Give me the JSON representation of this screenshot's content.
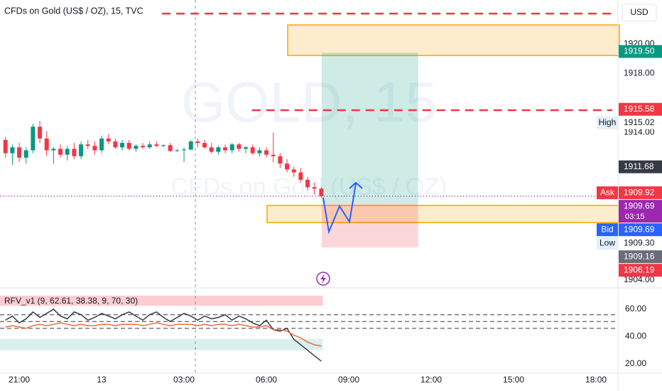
{
  "header": {
    "title": "CFDs on Gold (US$ / OZ), 15, TVC",
    "currency": "USD"
  },
  "chart_data": [
    {
      "type": "candlestick",
      "watermark": [
        "GOLD, 15",
        "CFDs on Gold (US$ / OZ)"
      ],
      "xlim": [
        -2.8,
        87.2
      ],
      "xticks": [
        {
          "value": 0,
          "label": "21:00"
        },
        {
          "value": 12,
          "label": "13"
        },
        {
          "value": 24,
          "label": "03:00"
        },
        {
          "value": 36,
          "label": "06:00"
        },
        {
          "value": 48,
          "label": "09:00"
        },
        {
          "value": 60,
          "label": "12:00"
        },
        {
          "value": 72,
          "label": "15:00"
        },
        {
          "value": 84,
          "label": "18:00"
        }
      ],
      "ylim": [
        1903.47,
        1922.99
      ],
      "yticks": [
        {
          "value": 1904,
          "label": "1904.00"
        },
        {
          "value": 1914,
          "label": "1914.00"
        },
        {
          "value": 1918,
          "label": "1918.00"
        },
        {
          "value": 1920,
          "label": "1920.00"
        }
      ],
      "up_color": "#089981",
      "down_color": "#f23645",
      "x": [
        -2,
        -1,
        0,
        1,
        2,
        3,
        4,
        5,
        6,
        7,
        8,
        9,
        10,
        11,
        12,
        13,
        14,
        15,
        16,
        17,
        18,
        19,
        20,
        21,
        22,
        23,
        24,
        25,
        26,
        27,
        28,
        29,
        30,
        31,
        32,
        33,
        34,
        35,
        36,
        37,
        38,
        39,
        40,
        41,
        42,
        43,
        44
      ],
      "open": [
        1913.5,
        1912.6,
        1913.0,
        1912.3,
        1912.8,
        1914.4,
        1913.6,
        1912.8,
        1912.9,
        1912.5,
        1912.9,
        1912.4,
        1913.2,
        1913.1,
        1912.8,
        1913.6,
        1913.4,
        1913.0,
        1913.3,
        1912.9,
        1913.1,
        1913.0,
        1913.2,
        1913.1,
        1913.15,
        1912.75,
        1912.8,
        1912.85,
        1913.4,
        1913.3,
        1913.0,
        1912.7,
        1913.0,
        1912.8,
        1913.2,
        1912.9,
        1913.0,
        1912.6,
        1912.8,
        1912.5,
        1912.4,
        1911.9,
        1911.5,
        1911.3,
        1910.8,
        1910.3,
        1910.2
      ],
      "high": [
        1913.7,
        1913.2,
        1913.3,
        1913.0,
        1914.6,
        1914.8,
        1914.1,
        1913.0,
        1913.2,
        1913.1,
        1913.3,
        1913.4,
        1913.5,
        1913.4,
        1913.8,
        1913.9,
        1913.6,
        1913.5,
        1913.5,
        1913.2,
        1913.3,
        1913.4,
        1913.4,
        1913.2,
        1913.3,
        1912.9,
        1913.0,
        1913.5,
        1913.6,
        1913.5,
        1913.3,
        1913.1,
        1913.2,
        1913.3,
        1913.3,
        1913.1,
        1913.2,
        1913.0,
        1913.0,
        1914.0,
        1912.6,
        1912.2,
        1911.7,
        1911.6,
        1911.0,
        1910.6,
        1910.3
      ],
      "low": [
        1912.3,
        1911.8,
        1912.0,
        1911.9,
        1912.6,
        1913.3,
        1912.4,
        1911.9,
        1912.3,
        1912.1,
        1912.2,
        1912.2,
        1912.9,
        1912.5,
        1912.6,
        1913.2,
        1912.9,
        1912.8,
        1912.8,
        1912.7,
        1912.9,
        1912.9,
        1913.0,
        1913.0,
        1912.7,
        1912.7,
        1912.0,
        1912.8,
        1913.0,
        1912.9,
        1912.6,
        1912.5,
        1912.6,
        1912.6,
        1912.7,
        1912.6,
        1912.5,
        1912.4,
        1912.3,
        1912.0,
        1911.6,
        1911.3,
        1911.0,
        1910.6,
        1910.1,
        1909.8,
        1909.6
      ],
      "close": [
        1912.6,
        1913.0,
        1912.3,
        1912.8,
        1914.4,
        1913.6,
        1912.8,
        1912.9,
        1912.5,
        1912.9,
        1912.4,
        1913.2,
        1913.1,
        1912.8,
        1913.6,
        1913.4,
        1913.0,
        1913.3,
        1912.9,
        1913.1,
        1913.0,
        1913.2,
        1913.1,
        1913.15,
        1912.75,
        1912.8,
        1912.85,
        1913.4,
        1913.3,
        1913.0,
        1912.7,
        1913.0,
        1912.8,
        1913.2,
        1912.9,
        1913.0,
        1912.6,
        1912.8,
        1912.5,
        1912.4,
        1911.9,
        1911.5,
        1911.3,
        1910.8,
        1910.3,
        1910.2,
        1909.69
      ],
      "hlines": [
        {
          "value": 1922.07,
          "x_from": 20.8,
          "color": "#f23645"
        },
        {
          "value": 1915.52,
          "x_from": 33.9,
          "color": "#f23645"
        }
      ],
      "zones": [
        {
          "range": [
            1919.23,
            1921.3
          ],
          "x_from": 39.1,
          "color": "#f7a600"
        },
        {
          "range": [
            1907.9,
            1909.06
          ],
          "x_from": 36.1,
          "color": "#f7a600"
        }
      ],
      "position": {
        "x": [
          44.05,
          58.1
        ],
        "target": 1919.42,
        "entry": 1909.16,
        "stop": 1906.22
      },
      "price_line": 1909.69,
      "price_labels": [
        {
          "value": 1919.5,
          "label": "1919.50",
          "color": "#089981"
        },
        {
          "value": 1915.58,
          "label": "1915.58",
          "color": "#f23645"
        },
        {
          "value": 1915.02,
          "label": "1915.02",
          "tag": "High",
          "color": "#e3effd"
        },
        {
          "value": 1911.68,
          "label": "1911.68",
          "color": "#363a45"
        },
        {
          "value": 1909.92,
          "label": "1909.92",
          "tag": "Ask",
          "color": "#f23645"
        },
        {
          "value": 1909.69,
          "label": "1909.69",
          "countdown": "03:15",
          "color": "#9c27b0"
        },
        {
          "value": 1909.69,
          "label": "1909.69",
          "tag": "Bid",
          "color": "#2962ff"
        },
        {
          "value": 1909.3,
          "label": "1909.30",
          "tag": "Low",
          "color": "#e3effd"
        },
        {
          "value": 1909.16,
          "label": "1909.16",
          "color": "#6a6d78"
        },
        {
          "value": 1906.19,
          "label": "1906.19",
          "color": "#f23645"
        }
      ]
    },
    {
      "type": "line",
      "title": "RFV_v1 (9, 62.61, 38.38, 9, 70, 30)",
      "xlim": [
        -2.8,
        87.2
      ],
      "ylim": [
        13.2,
        75.6
      ],
      "yticks": [
        {
          "value": 20,
          "label": "20.00"
        },
        {
          "value": 40,
          "label": "40.00"
        },
        {
          "value": 60,
          "label": "60.00"
        }
      ],
      "upper_band": [
        62.61,
        70
      ],
      "lower_band": [
        30,
        38.38
      ],
      "levels": [
        56,
        51,
        46
      ],
      "x": [
        -2,
        -1,
        0,
        1,
        2,
        3,
        4,
        5,
        6,
        7,
        8,
        9,
        10,
        11,
        12,
        13,
        14,
        15,
        16,
        17,
        18,
        19,
        20,
        21,
        22,
        23,
        24,
        25,
        26,
        27,
        28,
        29,
        30,
        31,
        32,
        33,
        34,
        35,
        36,
        37,
        38,
        39,
        40,
        41,
        42,
        43,
        44
      ],
      "series": [
        {
          "color": "#363a45",
          "values": [
            52,
            55,
            50,
            53,
            58,
            54,
            57,
            60,
            55,
            53,
            58,
            56,
            52,
            54,
            57,
            55,
            53,
            56,
            58,
            55,
            52,
            56,
            58,
            54,
            51,
            54,
            57,
            55,
            52,
            55,
            53,
            54,
            56,
            52,
            55,
            53,
            50,
            48,
            52,
            45,
            44,
            46,
            38,
            34,
            30,
            26,
            22
          ]
        },
        {
          "color": "#f06a3a",
          "values": [
            47,
            48,
            47,
            46,
            48,
            49,
            48,
            49,
            50,
            49,
            48,
            49,
            48,
            48,
            49,
            49,
            48,
            49,
            49,
            49,
            48,
            49,
            50,
            49,
            48,
            49,
            49,
            49,
            48,
            49,
            48,
            49,
            49,
            48,
            49,
            48,
            47,
            47,
            48,
            45,
            45,
            44,
            41,
            39,
            36,
            34,
            33
          ]
        }
      ]
    }
  ]
}
